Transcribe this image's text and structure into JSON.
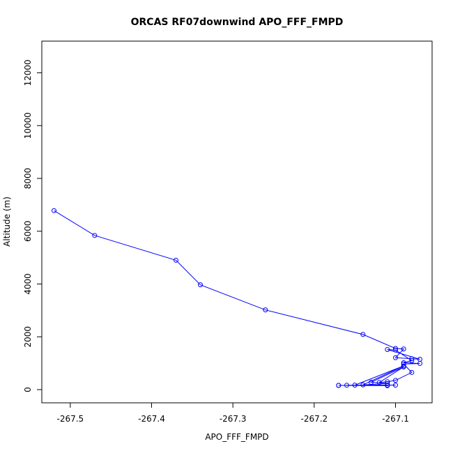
{
  "chart_data": {
    "type": "line",
    "title": "ORCAS RF07downwind APO_FFF_FMPD",
    "xlabel": "APO_FFF_FMPD",
    "ylabel": "Altitude (m)",
    "xlim": [
      -267.535,
      -267.055
    ],
    "ylim": [
      -500,
      13200
    ],
    "xticks": [
      -267.5,
      -267.4,
      -267.3,
      -267.2,
      -267.1
    ],
    "xtick_labels": [
      "-267.5",
      "-267.4",
      "-267.3",
      "-267.2",
      "-267.1"
    ],
    "yticks": [
      0,
      2000,
      4000,
      6000,
      8000,
      10000,
      12000
    ],
    "ytick_labels": [
      "0",
      "2000",
      "4000",
      "6000",
      "8000",
      "10000",
      "12000"
    ],
    "grid": false,
    "series_color": "#0000ff",
    "series": [
      {
        "markers": "open-circle",
        "x": [
          -267.52,
          -267.47,
          -267.37,
          -267.34,
          -267.26,
          -267.14,
          -267.1,
          -267.09,
          -267.1,
          -267.08,
          -267.07,
          -267.11,
          -267.1,
          -267.08,
          -267.09,
          -267.07,
          -267.09,
          -267.08,
          -267.1,
          -267.11,
          -267.12,
          -267.09,
          -267.13,
          -267.11,
          -267.14,
          -267.09,
          -267.15,
          -267.11,
          -267.16,
          -267.1,
          -267.17,
          -267.11,
          -267.17
        ],
        "y": [
          6780,
          5840,
          4900,
          3970,
          3020,
          2090,
          1560,
          1540,
          1210,
          1170,
          1150,
          1520,
          1500,
          1100,
          1020,
          990,
          970,
          650,
          350,
          300,
          270,
          860,
          280,
          230,
          180,
          900,
          170,
          170,
          165,
          170,
          160,
          150,
          160
        ]
      }
    ]
  }
}
